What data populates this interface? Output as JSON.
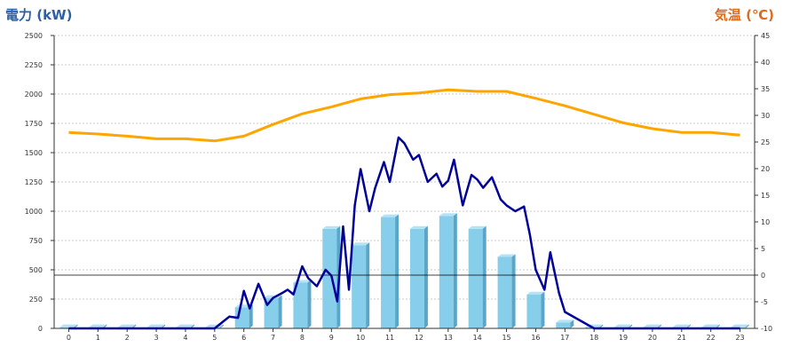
{
  "chart_data": {
    "type": "bar+line",
    "ylabel_left": "電力 (kW)",
    "ylabel_right": "気温 (℃)",
    "categories": [
      "0",
      "1",
      "2",
      "3",
      "4",
      "5",
      "6",
      "7",
      "8",
      "9",
      "10",
      "11",
      "12",
      "13",
      "14",
      "15",
      "16",
      "17",
      "18",
      "19",
      "20",
      "21",
      "22",
      "23"
    ],
    "left_axis": {
      "min": 0,
      "max": 2500,
      "ticks": [
        0,
        250,
        500,
        750,
        1000,
        1250,
        1500,
        1750,
        2000,
        2250,
        2500
      ]
    },
    "right_axis": {
      "min": -10,
      "max": 45,
      "ticks": [
        -10,
        -5,
        0,
        5,
        10,
        15,
        20,
        25,
        30,
        35,
        40,
        45
      ]
    },
    "bars": {
      "name": "",
      "color": "#87ceeb",
      "values": [
        10,
        10,
        10,
        10,
        10,
        10,
        180,
        260,
        390,
        850,
        710,
        950,
        850,
        960,
        850,
        610,
        290,
        50,
        10,
        10,
        10,
        10,
        10,
        10
      ]
    },
    "power_line": {
      "color": "#000099",
      "x": [
        0,
        1,
        2,
        3,
        4,
        5,
        5.5,
        5.8,
        6,
        6.2,
        6.5,
        6.8,
        7,
        7.3,
        7.5,
        7.7,
        8,
        8.2,
        8.5,
        8.8,
        9,
        9.2,
        9.4,
        9.6,
        9.8,
        10,
        10.3,
        10.5,
        10.8,
        11,
        11.3,
        11.5,
        11.8,
        12,
        12.3,
        12.6,
        12.8,
        13,
        13.2,
        13.5,
        13.8,
        14,
        14.2,
        14.5,
        14.8,
        15,
        15.3,
        15.6,
        15.8,
        16,
        16.3,
        16.5,
        16.8,
        17,
        18,
        19,
        20,
        21,
        22,
        23
      ],
      "y": [
        0,
        0,
        0,
        0,
        0,
        0,
        100,
        90,
        320,
        170,
        380,
        200,
        260,
        300,
        330,
        290,
        530,
        430,
        360,
        500,
        450,
        230,
        870,
        330,
        1050,
        1360,
        1000,
        1200,
        1420,
        1250,
        1630,
        1580,
        1440,
        1480,
        1250,
        1320,
        1210,
        1260,
        1440,
        1050,
        1310,
        1270,
        1200,
        1290,
        1100,
        1050,
        1000,
        1040,
        800,
        500,
        330,
        650,
        300,
        140,
        0,
        0,
        0,
        0,
        0,
        0
      ]
    },
    "temp_line": {
      "color": "#ffa500",
      "x": [
        0,
        1,
        2,
        3,
        4,
        5,
        6,
        7,
        8,
        9,
        10,
        11,
        12,
        13,
        14,
        15,
        16,
        17,
        18,
        19,
        20,
        21,
        22,
        23
      ],
      "y": [
        26.8,
        26.5,
        26.1,
        25.6,
        25.6,
        25.2,
        26.1,
        28.3,
        30.3,
        31.6,
        33.1,
        33.9,
        34.2,
        34.8,
        34.5,
        34.5,
        33.2,
        31.8,
        30.2,
        28.6,
        27.5,
        26.8,
        26.8,
        26.3
      ]
    },
    "grid": true
  }
}
